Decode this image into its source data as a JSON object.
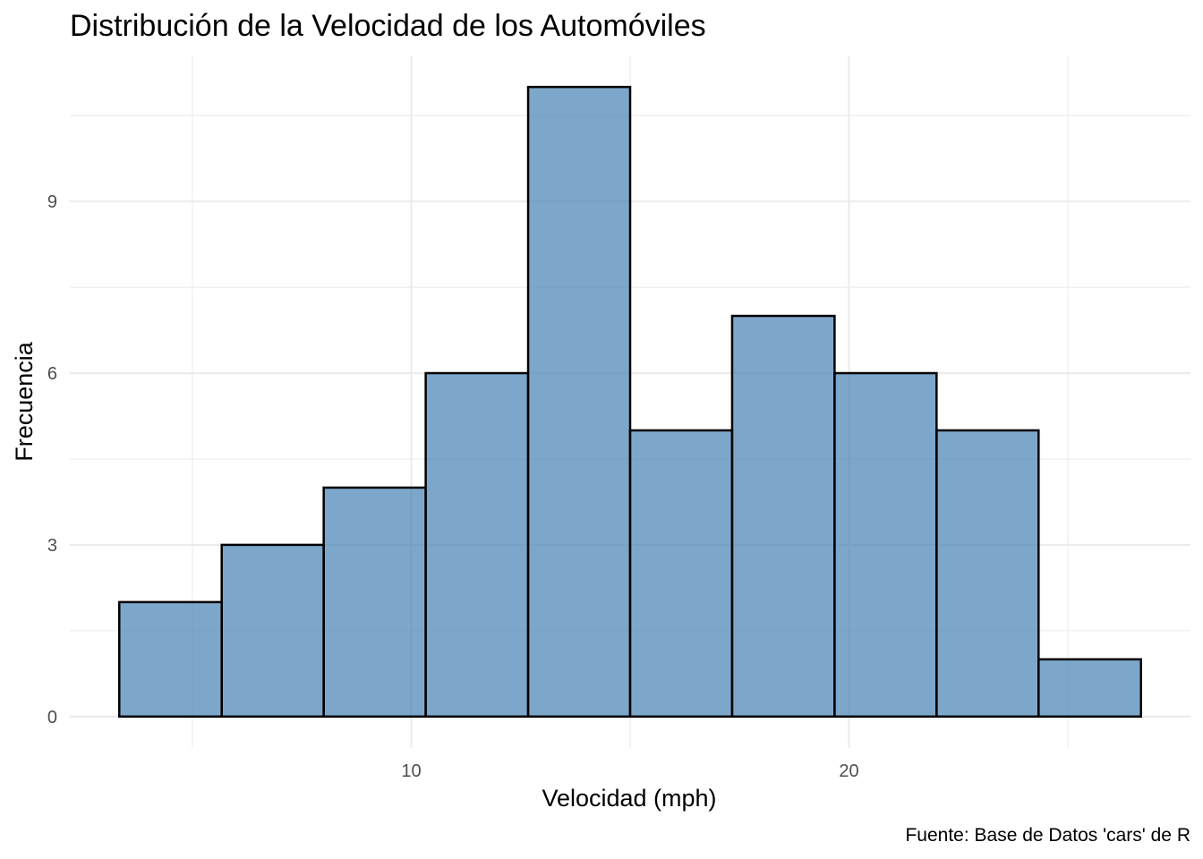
{
  "chart_data": {
    "type": "bar",
    "variant": "histogram",
    "title": "Distribución de la Velocidad de los Automóviles",
    "xlabel": "Velocidad (mph)",
    "ylabel": "Frecuencia",
    "caption": "Fuente: Base de Datos 'cars' de R",
    "bins": [
      {
        "x0": 3.33,
        "x1": 5.67,
        "count": 2
      },
      {
        "x0": 5.67,
        "x1": 8.0,
        "count": 3
      },
      {
        "x0": 8.0,
        "x1": 10.33,
        "count": 4
      },
      {
        "x0": 10.33,
        "x1": 12.67,
        "count": 6
      },
      {
        "x0": 12.67,
        "x1": 15.0,
        "count": 11
      },
      {
        "x0": 15.0,
        "x1": 17.33,
        "count": 5
      },
      {
        "x0": 17.33,
        "x1": 19.67,
        "count": 7
      },
      {
        "x0": 19.67,
        "x1": 22.0,
        "count": 6
      },
      {
        "x0": 22.0,
        "x1": 24.33,
        "count": 5
      },
      {
        "x0": 24.33,
        "x1": 26.67,
        "count": 1
      }
    ],
    "xlim": [
      2.2,
      27.8
    ],
    "ylim": [
      -0.55,
      11.55
    ],
    "x_ticks": [
      10,
      20
    ],
    "x_tick_labels": [
      "10",
      "20"
    ],
    "y_ticks": [
      0,
      3,
      6,
      9
    ],
    "y_tick_labels": [
      "0",
      "3",
      "6",
      "9"
    ],
    "grid": true,
    "legend": "none",
    "colors": {
      "bar_fill": "#4682b4",
      "bar_outline": "#000000",
      "grid": "#ebebeb",
      "tick_text": "#4d4d4d"
    }
  }
}
